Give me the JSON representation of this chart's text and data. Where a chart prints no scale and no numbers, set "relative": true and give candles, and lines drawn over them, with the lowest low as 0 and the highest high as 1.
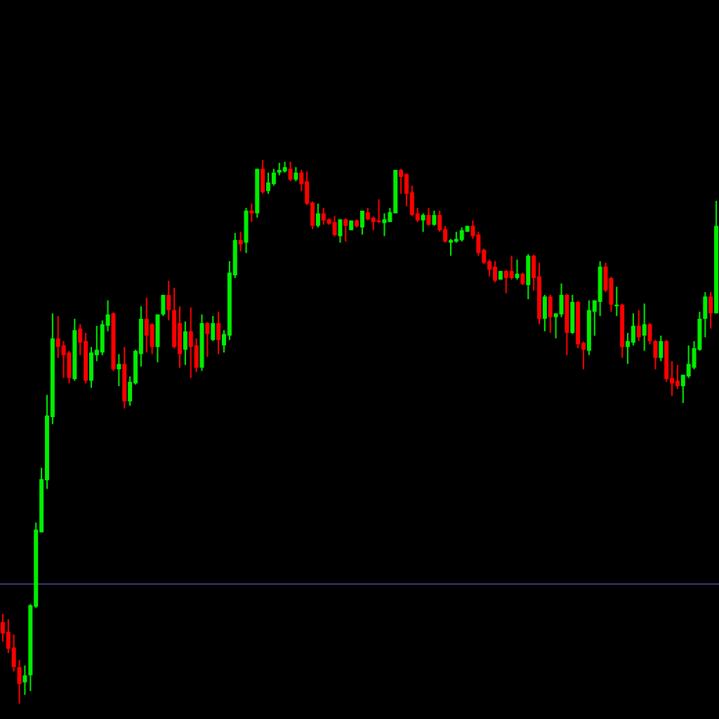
{
  "chart_data": {
    "type": "candlestick",
    "relative": true,
    "categories": [
      null,
      null,
      null,
      null,
      null,
      null,
      null,
      null,
      null,
      null,
      null,
      null,
      null,
      null,
      null,
      null,
      null,
      null,
      null,
      null,
      null,
      null,
      null,
      null,
      null,
      null,
      null,
      null,
      null,
      null,
      null,
      null,
      null,
      null,
      null,
      null,
      null,
      null,
      null,
      null,
      null,
      null,
      null,
      null,
      null,
      null,
      null,
      null,
      null,
      null,
      null,
      null,
      null,
      null,
      null,
      null,
      null,
      null,
      null,
      null,
      null,
      null,
      null,
      null,
      null,
      null,
      null,
      null,
      null,
      null,
      null,
      null,
      null,
      null,
      null,
      null,
      null,
      null,
      null,
      null,
      null,
      null,
      null,
      null,
      null,
      null,
      null,
      null,
      null,
      null,
      null,
      null,
      null,
      null,
      null,
      null,
      null,
      null,
      null,
      null,
      null,
      null,
      null,
      null,
      null,
      null,
      null,
      null,
      null,
      null,
      null,
      null,
      null,
      null,
      null,
      null,
      null,
      null,
      null,
      null,
      null,
      null,
      null,
      null,
      null,
      null,
      null,
      null,
      null,
      null
    ],
    "ohlc": [
      [
        0.15,
        0.165,
        0.114,
        0.129
      ],
      [
        0.132,
        0.155,
        0.093,
        0.101
      ],
      [
        0.103,
        0.127,
        0.059,
        0.067
      ],
      [
        0.067,
        0.08,
        0,
        0.036
      ],
      [
        0.039,
        0.07,
        0.016,
        0.052
      ],
      [
        0.052,
        0.183,
        0.023,
        0.181
      ],
      [
        0.178,
        0.333,
        0.176,
        0.32
      ],
      [
        0.315,
        0.434,
        0.315,
        0.413
      ],
      [
        0.411,
        0.568,
        0.395,
        0.53
      ],
      [
        0.527,
        0.718,
        0.514,
        0.672
      ],
      [
        0.672,
        0.713,
        0.636,
        0.656
      ],
      [
        0.659,
        0.667,
        0.599,
        0.641
      ],
      [
        0.646,
        0.649,
        0.589,
        0.599
      ],
      [
        0.597,
        0.708,
        0.594,
        0.687
      ],
      [
        0.69,
        0.698,
        0.641,
        0.664
      ],
      [
        0.667,
        0.682,
        0.589,
        0.594
      ],
      [
        0.594,
        0.656,
        0.581,
        0.646
      ],
      [
        0.641,
        0.695,
        0.63,
        0.651
      ],
      [
        0.646,
        0.705,
        0.641,
        0.698
      ],
      [
        0.695,
        0.742,
        0.685,
        0.716
      ],
      [
        0.718,
        0.72,
        0.612,
        0.615
      ],
      [
        0.615,
        0.643,
        0.584,
        0.625
      ],
      [
        0.625,
        0.656,
        0.543,
        0.556
      ],
      [
        0.556,
        0.602,
        0.548,
        0.592
      ],
      [
        0.589,
        0.651,
        0.587,
        0.649
      ],
      [
        0.643,
        0.731,
        0.62,
        0.708
      ],
      [
        0.708,
        0.747,
        0.646,
        0.677
      ],
      [
        0.698,
        0.7,
        0.643,
        0.656
      ],
      [
        0.656,
        0.716,
        0.628,
        0.716
      ],
      [
        0.716,
        0.752,
        0.713,
        0.752
      ],
      [
        0.752,
        0.778,
        0.705,
        0.724
      ],
      [
        0.724,
        0.765,
        0.654,
        0.656
      ],
      [
        0.7,
        0.731,
        0.618,
        0.643
      ],
      [
        0.651,
        0.703,
        0.623,
        0.685
      ],
      [
        0.685,
        0.729,
        0.599,
        0.656
      ],
      [
        0.659,
        0.672,
        0.61,
        0.618
      ],
      [
        0.618,
        0.716,
        0.612,
        0.7
      ],
      [
        0.7,
        0.702,
        0.638,
        0.68
      ],
      [
        0.669,
        0.713,
        0.667,
        0.7
      ],
      [
        0.7,
        0.721,
        0.643,
        0.669
      ],
      [
        0.659,
        0.687,
        0.646,
        0.68
      ],
      [
        0.677,
        0.814,
        0.669,
        0.793
      ],
      [
        0.788,
        0.866,
        0.783,
        0.853
      ],
      [
        0.853,
        0.868,
        0.832,
        0.845
      ],
      [
        0.848,
        0.912,
        0.829,
        0.907
      ],
      [
        0.907,
        0.92,
        0.886,
        0.902
      ],
      [
        0.902,
        0.984,
        0.894,
        0.984
      ],
      [
        0.984,
        1,
        0.938,
        0.941
      ],
      [
        0.943,
        0.977,
        0.938,
        0.959
      ],
      [
        0.956,
        0.984,
        0.953,
        0.977
      ],
      [
        0.977,
        0.995,
        0.972,
        0.982
      ],
      [
        0.979,
        0.997,
        0.977,
        0.987
      ],
      [
        0.984,
        0.997,
        0.961,
        0.964
      ],
      [
        0.964,
        0.987,
        0.961,
        0.977
      ],
      [
        0.977,
        0.982,
        0.943,
        0.956
      ],
      [
        0.961,
        0.979,
        0.917,
        0.92
      ],
      [
        0.922,
        0.924,
        0.873,
        0.879
      ],
      [
        0.879,
        0.92,
        0.876,
        0.902
      ],
      [
        0.902,
        0.912,
        0.881,
        0.889
      ],
      [
        0.891,
        0.893,
        0.881,
        0.883
      ],
      [
        0.886,
        0.897,
        0.86,
        0.862
      ],
      [
        0.86,
        0.891,
        0.848,
        0.891
      ],
      [
        0.891,
        0.893,
        0.85,
        0.879
      ],
      [
        0.871,
        0.889,
        0.871,
        0.889
      ],
      [
        0.889,
        0.891,
        0.876,
        0.878
      ],
      [
        0.876,
        0.907,
        0.863,
        0.907
      ],
      [
        0.904,
        0.912,
        0.889,
        0.891
      ],
      [
        0.894,
        0.896,
        0.871,
        0.886
      ],
      [
        0.889,
        0.928,
        0.884,
        0.886
      ],
      [
        0.884,
        0.902,
        0.86,
        0.891
      ],
      [
        0.886,
        0.912,
        0.886,
        0.904
      ],
      [
        0.902,
        0.982,
        0.902,
        0.982
      ],
      [
        0.982,
        0.984,
        0.938,
        0.969
      ],
      [
        0.974,
        0.976,
        0.915,
        0.938
      ],
      [
        0.941,
        0.953,
        0.897,
        0.899
      ],
      [
        0.902,
        0.912,
        0.886,
        0.889
      ],
      [
        0.889,
        0.902,
        0.868,
        0.899
      ],
      [
        0.899,
        0.912,
        0.879,
        0.881
      ],
      [
        0.881,
        0.907,
        0.879,
        0.899
      ],
      [
        0.899,
        0.907,
        0.868,
        0.871
      ],
      [
        0.873,
        0.879,
        0.848,
        0.85
      ],
      [
        0.848,
        0.855,
        0.824,
        0.853
      ],
      [
        0.85,
        0.868,
        0.848,
        0.855
      ],
      [
        0.853,
        0.876,
        0.85,
        0.871
      ],
      [
        0.868,
        0.879,
        0.868,
        0.879
      ],
      [
        0.879,
        0.889,
        0.855,
        0.86
      ],
      [
        0.863,
        0.868,
        0.824,
        0.829
      ],
      [
        0.835,
        0.837,
        0.809,
        0.811
      ],
      [
        0.814,
        0.817,
        0.786,
        0.798
      ],
      [
        0.804,
        0.814,
        0.775,
        0.778
      ],
      [
        0.78,
        0.796,
        0.78,
        0.796
      ],
      [
        0.796,
        0.798,
        0.755,
        0.783
      ],
      [
        0.796,
        0.824,
        0.78,
        0.783
      ],
      [
        0.783,
        0.817,
        0.78,
        0.791
      ],
      [
        0.791,
        0.793,
        0.77,
        0.772
      ],
      [
        0.77,
        0.827,
        0.744,
        0.824
      ],
      [
        0.824,
        0.826,
        0.76,
        0.783
      ],
      [
        0.786,
        0.811,
        0.698,
        0.708
      ],
      [
        0.708,
        0.752,
        0.685,
        0.749
      ],
      [
        0.749,
        0.752,
        0.682,
        0.711
      ],
      [
        0.711,
        0.718,
        0.672,
        0.718
      ],
      [
        0.716,
        0.773,
        0.711,
        0.752
      ],
      [
        0.752,
        0.754,
        0.641,
        0.682
      ],
      [
        0.682,
        0.752,
        0.68,
        0.739
      ],
      [
        0.739,
        0.741,
        0.654,
        0.661
      ],
      [
        0.664,
        0.666,
        0.615,
        0.651
      ],
      [
        0.649,
        0.742,
        0.641,
        0.724
      ],
      [
        0.721,
        0.742,
        0.677,
        0.742
      ],
      [
        0.739,
        0.814,
        0.713,
        0.804
      ],
      [
        0.804,
        0.811,
        0.757,
        0.76
      ],
      [
        0.783,
        0.785,
        0.721,
        0.734
      ],
      [
        0.731,
        0.767,
        0.713,
        0.734
      ],
      [
        0.734,
        0.736,
        0.636,
        0.656
      ],
      [
        0.656,
        0.682,
        0.625,
        0.667
      ],
      [
        0.664,
        0.718,
        0.659,
        0.695
      ],
      [
        0.695,
        0.724,
        0.667,
        0.674
      ],
      [
        0.677,
        0.736,
        0.649,
        0.698
      ],
      [
        0.698,
        0.7,
        0.661,
        0.667
      ],
      [
        0.667,
        0.669,
        0.615,
        0.636
      ],
      [
        0.636,
        0.677,
        0.63,
        0.667
      ],
      [
        0.667,
        0.669,
        0.592,
        0.597
      ],
      [
        0.599,
        0.63,
        0.566,
        0.589
      ],
      [
        0.594,
        0.623,
        0.579,
        0.584
      ],
      [
        0.584,
        0.605,
        0.553,
        0.605
      ],
      [
        0.602,
        0.659,
        0.599,
        0.625
      ],
      [
        0.618,
        0.667,
        0.615,
        0.654
      ],
      [
        0.651,
        0.721,
        0.649,
        0.708
      ],
      [
        0.708,
        0.757,
        0.674,
        0.749
      ],
      [
        0.749,
        0.757,
        0.69,
        0.718
      ],
      [
        0.718,
        0.925,
        0.718,
        0.879
      ]
    ],
    "ref_lines": [
      {
        "axis": "y",
        "value": 0.22,
        "color": "#3c3c78"
      }
    ]
  }
}
